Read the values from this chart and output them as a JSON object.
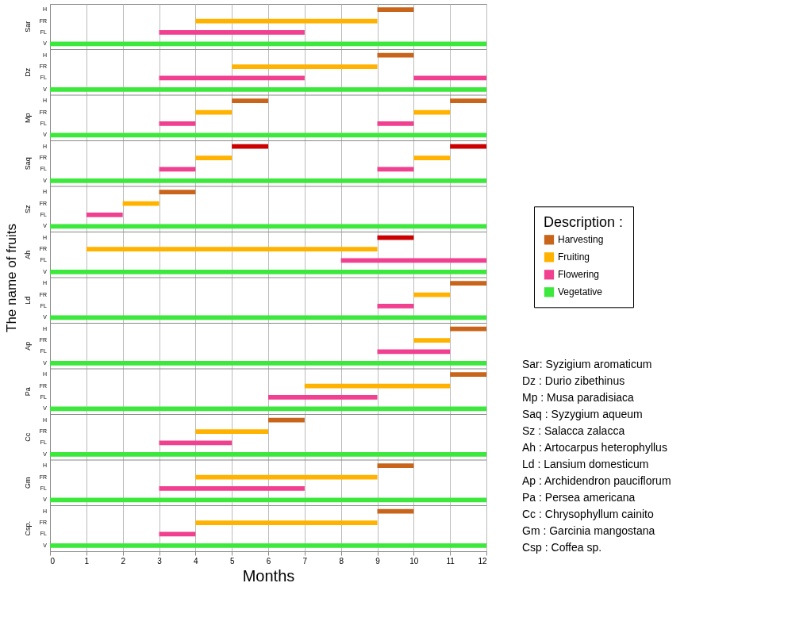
{
  "chart_data": {
    "type": "bar",
    "orientation": "horizontal",
    "xlabel": "Months",
    "ylabel": "The name of fruits",
    "legend_title": "Description :",
    "legend": "right",
    "grid": "x",
    "xlim": [
      0,
      12
    ],
    "xticks": [
      0,
      1,
      2,
      3,
      4,
      5,
      6,
      7,
      8,
      9,
      10,
      11,
      12
    ],
    "categories": [
      "H",
      "FR",
      "FL",
      "V",
      "H",
      "FR",
      "FL",
      "V",
      "H",
      "FR",
      "FL",
      "V",
      "H",
      "FR",
      "FL",
      "V",
      "H",
      "FR",
      "FL",
      "V",
      "H",
      "FR",
      "FL",
      "V",
      "H",
      "FR",
      "FL",
      "V",
      "H",
      "FR",
      "FL",
      "V",
      "H",
      "FR",
      "FL",
      "V",
      "H",
      "FR",
      "FL",
      "V",
      "H",
      "FR",
      "FL",
      "V",
      "H",
      "FR",
      "FL",
      "V"
    ],
    "series": [
      {
        "name": "Harvesting",
        "color": "#c8651b",
        "values": [
          1,
          null,
          null,
          null,
          1,
          null,
          null,
          null,
          1,
          null,
          null,
          null,
          1,
          null,
          null,
          null,
          1,
          null,
          null,
          null,
          1,
          null,
          null,
          null,
          1,
          null,
          null,
          null,
          1,
          null,
          null,
          null,
          1,
          null,
          null,
          null,
          1,
          null,
          null,
          null,
          1,
          null,
          null,
          null,
          1,
          null,
          null,
          null
        ],
        "base": [
          9,
          null,
          null,
          null,
          9,
          null,
          null,
          null,
          5,
          null,
          null,
          null,
          5,
          null,
          null,
          null,
          3,
          null,
          null,
          null,
          9,
          null,
          null,
          null,
          11,
          null,
          null,
          null,
          11,
          null,
          null,
          null,
          11,
          null,
          null,
          null,
          6,
          null,
          null,
          null,
          9,
          null,
          null,
          null,
          9,
          null,
          null,
          null
        ],
        "colors": [
          "#c8651b",
          null,
          null,
          null,
          "#c8651b",
          null,
          null,
          null,
          "#c8651b",
          null,
          null,
          null,
          "#cc0000",
          null,
          null,
          null,
          "#c8651b",
          null,
          null,
          null,
          "#cc0000",
          null,
          null,
          null,
          "#c8651b",
          null,
          null,
          null,
          "#c8651b",
          null,
          null,
          null,
          "#c8651b",
          null,
          null,
          null,
          "#c8651b",
          null,
          null,
          null,
          "#c8651b",
          null,
          null,
          null,
          "#c8651b",
          null,
          null,
          null
        ]
      },
      {
        "name": "Fruiting",
        "color": "#ffb300",
        "values": [
          null,
          5,
          null,
          null,
          null,
          4,
          null,
          null,
          null,
          1,
          null,
          null,
          null,
          1,
          null,
          null,
          null,
          1,
          null,
          null,
          null,
          8,
          null,
          null,
          null,
          1,
          null,
          null,
          null,
          1,
          null,
          null,
          null,
          4,
          null,
          null,
          null,
          2,
          null,
          null,
          null,
          5,
          null,
          null,
          null,
          5,
          null,
          null
        ],
        "base": [
          null,
          4,
          null,
          null,
          null,
          5,
          null,
          null,
          null,
          4,
          null,
          null,
          null,
          4,
          null,
          null,
          null,
          2,
          null,
          null,
          null,
          1,
          null,
          null,
          null,
          10,
          null,
          null,
          null,
          10,
          null,
          null,
          null,
          7,
          null,
          null,
          null,
          4,
          null,
          null,
          null,
          4,
          null,
          null,
          null,
          4,
          null,
          null
        ]
      },
      {
        "name": "Flowering",
        "color": "#f0408f",
        "values": [
          null,
          null,
          4,
          null,
          null,
          null,
          4,
          null,
          null,
          null,
          1,
          null,
          null,
          null,
          1,
          null,
          null,
          null,
          1,
          null,
          null,
          null,
          4,
          null,
          null,
          null,
          1,
          null,
          null,
          null,
          2,
          null,
          null,
          null,
          3,
          null,
          null,
          null,
          2,
          null,
          null,
          null,
          4,
          null,
          null,
          null,
          1,
          null
        ],
        "base": [
          null,
          null,
          3,
          null,
          null,
          null,
          3,
          null,
          null,
          null,
          3,
          null,
          null,
          null,
          3,
          null,
          null,
          null,
          1,
          null,
          null,
          null,
          8,
          null,
          null,
          null,
          9,
          null,
          null,
          null,
          9,
          null,
          null,
          null,
          6,
          null,
          null,
          null,
          3,
          null,
          null,
          null,
          3,
          null,
          null,
          null,
          3,
          null
        ]
      },
      {
        "name": "Vegetative",
        "color": "#3de83d",
        "values": [
          null,
          null,
          null,
          12,
          null,
          null,
          null,
          12,
          null,
          null,
          null,
          12,
          null,
          null,
          null,
          12,
          null,
          null,
          null,
          12,
          null,
          null,
          null,
          12,
          null,
          null,
          null,
          12,
          null,
          null,
          null,
          12,
          null,
          null,
          null,
          12,
          null,
          null,
          null,
          12,
          null,
          null,
          null,
          12,
          null,
          null,
          null,
          12
        ],
        "base": [
          null,
          null,
          null,
          0,
          null,
          null,
          null,
          0,
          null,
          null,
          null,
          0,
          null,
          null,
          null,
          0,
          null,
          null,
          null,
          0,
          null,
          null,
          null,
          0,
          null,
          null,
          null,
          0,
          null,
          null,
          null,
          0,
          null,
          null,
          null,
          0,
          null,
          null,
          null,
          0,
          null,
          null,
          null,
          0,
          null,
          null,
          null,
          0
        ]
      },
      {
        "values": [
          null,
          null,
          null,
          null,
          null,
          null,
          2,
          null,
          1,
          1,
          1,
          null,
          1,
          1,
          1,
          null,
          null,
          null,
          null,
          null,
          null,
          null,
          null,
          null,
          null,
          null,
          null,
          null,
          null,
          null,
          null,
          null,
          null,
          null,
          null,
          null,
          null,
          null,
          null,
          null,
          null,
          null,
          null,
          null,
          null,
          null,
          null,
          null
        ],
        "base": [
          null,
          null,
          null,
          null,
          null,
          null,
          10,
          null,
          11,
          10,
          9,
          null,
          11,
          10,
          9,
          null,
          null,
          null,
          null,
          null,
          null,
          null,
          null,
          null,
          null,
          null,
          null,
          null,
          null,
          null,
          null,
          null,
          null,
          null,
          null,
          null,
          null,
          null,
          null,
          null,
          null,
          null,
          null,
          null,
          null,
          null,
          null,
          null
        ],
        "colors": [
          null,
          null,
          null,
          null,
          null,
          null,
          "#f0408f",
          null,
          "#c8651b",
          "#ffb300",
          "#f0408f",
          null,
          "#cc0000",
          "#ffb300",
          "#f0408f",
          null,
          null,
          null,
          null,
          null,
          null,
          null,
          null,
          null,
          null,
          null,
          null,
          null,
          null,
          null,
          null,
          null,
          null,
          null,
          null,
          null,
          null,
          null,
          null,
          null,
          null,
          null,
          null,
          null,
          null,
          null,
          null,
          null
        ]
      }
    ],
    "annotations": [
      "Sar",
      "Dz",
      "Mp",
      "Saq",
      "Sz",
      "Ah",
      "Ld",
      "Ap",
      "Pa",
      "Cc",
      "Gm",
      "Csp.",
      "Sar: Syzigium aromaticum",
      "Dz : Durio zibethinus",
      "Mp : Musa paradisiaca",
      "Saq : Syzygium aqueum",
      "Sz : Salacca zalacca",
      "Ah : Artocarpus heterophyllus",
      "Ld : Lansium domesticum",
      "Ap : Archidendron pauciflorum",
      "Pa : Persea americana",
      "Cc : Chrysophyllum cainito",
      "Gm : Garcinia mangostana",
      "Csp : Coffea sp."
    ]
  }
}
